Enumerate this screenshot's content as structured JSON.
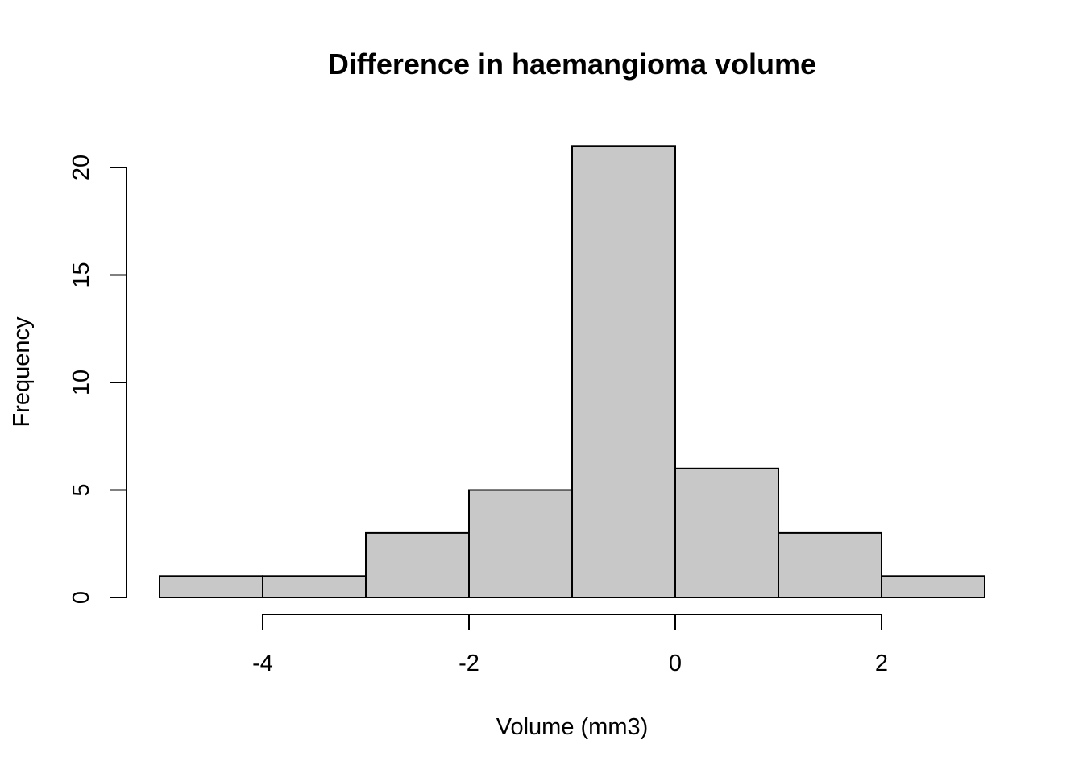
{
  "chart_data": {
    "type": "bar",
    "subtype": "histogram",
    "title": "Difference in haemangioma volume",
    "xlabel": "Volume (mm3)",
    "ylabel": "Frequency",
    "bins": [
      {
        "start": -5,
        "end": -4,
        "count": 1
      },
      {
        "start": -4,
        "end": -3,
        "count": 1
      },
      {
        "start": -3,
        "end": -2,
        "count": 3
      },
      {
        "start": -2,
        "end": -1,
        "count": 5
      },
      {
        "start": -1,
        "end": 0,
        "count": 21
      },
      {
        "start": 0,
        "end": 1,
        "count": 6
      },
      {
        "start": 1,
        "end": 2,
        "count": 3
      },
      {
        "start": 2,
        "end": 3,
        "count": 1
      }
    ],
    "xlim": [
      -5,
      3
    ],
    "ylim": [
      0,
      21
    ],
    "x_ticks": [
      -4,
      -2,
      0,
      2
    ],
    "x_tick_labels": [
      "-4",
      "-2",
      "0",
      "2"
    ],
    "y_ticks": [
      0,
      5,
      10,
      15,
      20
    ],
    "y_tick_labels": [
      "0",
      "5",
      "10",
      "15",
      "20"
    ],
    "bar_fill": "#c8c8c8",
    "bar_stroke": "#000000",
    "grid": false,
    "legend": "none"
  }
}
